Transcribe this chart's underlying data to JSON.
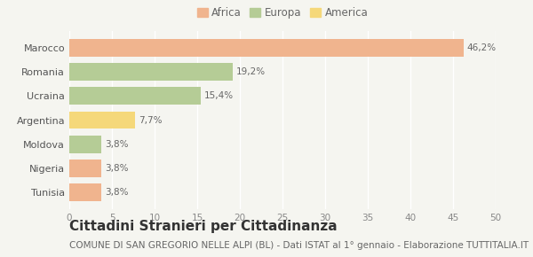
{
  "categories": [
    "Tunisia",
    "Nigeria",
    "Moldova",
    "Argentina",
    "Ucraina",
    "Romania",
    "Marocco"
  ],
  "values": [
    3.8,
    3.8,
    3.8,
    7.7,
    15.4,
    19.2,
    46.2
  ],
  "labels": [
    "3,8%",
    "3,8%",
    "3,8%",
    "7,7%",
    "15,4%",
    "19,2%",
    "46,2%"
  ],
  "colors": [
    "#f0b48e",
    "#f0b48e",
    "#b5cc96",
    "#f5d87a",
    "#b5cc96",
    "#b5cc96",
    "#f0b48e"
  ],
  "bar_color_africa": "#f0b48e",
  "bar_color_europa": "#b5cc96",
  "bar_color_america": "#f5d87a",
  "xlim": [
    0,
    50
  ],
  "xticks": [
    0,
    5,
    10,
    15,
    20,
    25,
    30,
    35,
    40,
    45,
    50
  ],
  "title": "Cittadini Stranieri per Cittadinanza",
  "subtitle": "COMUNE DI SAN GREGORIO NELLE ALPI (BL) - Dati ISTAT al 1° gennaio - Elaborazione TUTTITALIA.IT",
  "background_color": "#f5f5f0",
  "grid_color": "#ffffff",
  "title_fontsize": 11,
  "subtitle_fontsize": 7.5,
  "label_fontsize": 7.5,
  "tick_fontsize": 7.5,
  "ytick_fontsize": 8
}
